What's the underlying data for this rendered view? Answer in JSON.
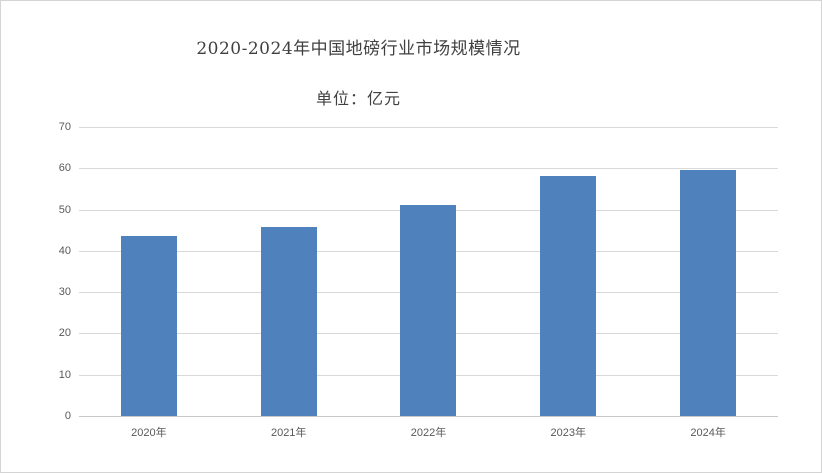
{
  "frame": {
    "background": "#ffffff",
    "border_color": "#d4d4d4"
  },
  "chart_data": {
    "type": "bar",
    "title": "2020-2024年中国地磅行业市场规模情况",
    "subtitle": "单位：亿元",
    "unit": "亿元",
    "categories": [
      "2020年",
      "2021年",
      "2022年",
      "2023年",
      "2024年"
    ],
    "values": [
      43.7,
      45.8,
      51,
      58.1,
      59.6
    ],
    "xlabel": "",
    "ylabel": "",
    "ylim": [
      0,
      70
    ],
    "yticks": [
      0,
      10,
      20,
      30,
      40,
      50,
      60,
      70
    ],
    "grid": true,
    "legend": false,
    "bar_color": "#4f81bd",
    "gridline_color": "#d9d9d9",
    "axis_line_color": "#c8c8c8",
    "tick_label_color": "#595959",
    "title_color": "#404040"
  }
}
